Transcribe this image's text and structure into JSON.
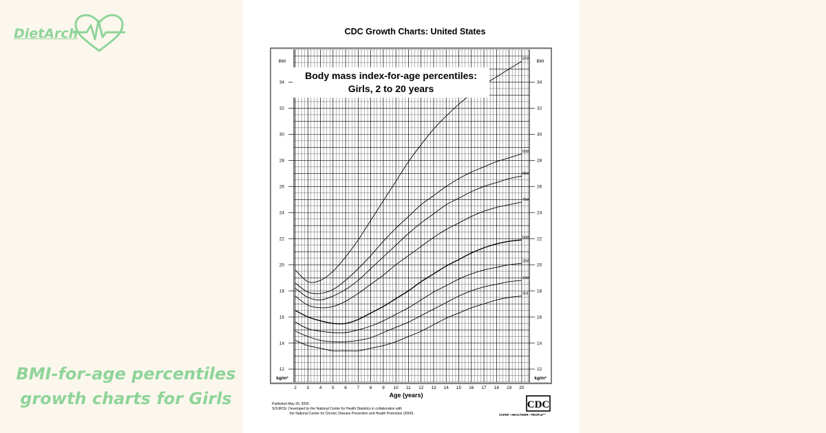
{
  "brand": {
    "name": "DietArch",
    "color": "#8fd49a"
  },
  "caption": {
    "line1": "BMI-for-age percentiles",
    "line2": "growth charts for Girls"
  },
  "sheet": {
    "header": "CDC Growth Charts: United States",
    "title_line1": "Body mass index-for-age percentiles:",
    "title_line2": "Girls, 2 to 20 years",
    "published": "Published May 30, 2000.",
    "source_line1": "SOURCE: Developed by the National Center for Health Statistics in collaboration with",
    "source_line2": "the National Center for Chronic Disease Prevention and Health Promotion (2000).",
    "logo_text": "CDC",
    "logo_tagline": "SAFER • HEALTHIER • PEOPLE™"
  },
  "chart_data": {
    "type": "line",
    "title": "Body mass index-for-age percentiles: Girls, 2 to 20 years",
    "xlabel": "Age (years)",
    "ylabel": "BMI",
    "yunit": "kg/m²",
    "xlim": [
      2,
      20.5
    ],
    "ylim": [
      11,
      36.5
    ],
    "x_ticks": [
      2,
      3,
      4,
      5,
      6,
      7,
      8,
      9,
      10,
      11,
      12,
      13,
      14,
      15,
      16,
      17,
      18,
      19,
      20
    ],
    "y_ticks": [
      12,
      14,
      16,
      18,
      20,
      22,
      24,
      26,
      28,
      30,
      32,
      34
    ],
    "grid": true,
    "x": [
      2,
      3,
      4,
      5,
      6,
      7,
      8,
      9,
      10,
      11,
      12,
      13,
      14,
      15,
      16,
      17,
      18,
      19,
      20
    ],
    "series": [
      {
        "name": "97th",
        "values": [
          19.6,
          18.7,
          18.8,
          19.5,
          20.6,
          21.9,
          23.4,
          24.9,
          26.4,
          27.9,
          29.2,
          30.4,
          31.4,
          32.3,
          33.1,
          33.8,
          34.4,
          35.0,
          35.6
        ]
      },
      {
        "name": "90th",
        "values": [
          18.6,
          17.9,
          17.8,
          18.1,
          18.8,
          19.7,
          20.7,
          21.8,
          22.8,
          23.7,
          24.6,
          25.3,
          26.0,
          26.6,
          27.1,
          27.5,
          27.9,
          28.2,
          28.5
        ]
      },
      {
        "name": "85th",
        "values": [
          18.2,
          17.5,
          17.3,
          17.6,
          18.1,
          18.8,
          19.7,
          20.6,
          21.5,
          22.4,
          23.2,
          23.9,
          24.6,
          25.1,
          25.6,
          26.0,
          26.3,
          26.6,
          26.8
        ]
      },
      {
        "name": "75th",
        "values": [
          17.6,
          16.9,
          16.7,
          16.8,
          17.2,
          17.8,
          18.5,
          19.2,
          20.0,
          20.7,
          21.4,
          22.1,
          22.7,
          23.2,
          23.7,
          24.1,
          24.4,
          24.6,
          24.8
        ]
      },
      {
        "name": "50th",
        "values": [
          16.5,
          16.0,
          15.7,
          15.5,
          15.5,
          15.8,
          16.3,
          16.8,
          17.4,
          18.0,
          18.7,
          19.3,
          19.9,
          20.4,
          20.9,
          21.3,
          21.6,
          21.8,
          21.9
        ]
      },
      {
        "name": "25th",
        "values": [
          15.6,
          15.1,
          14.9,
          14.8,
          14.8,
          15.0,
          15.3,
          15.7,
          16.2,
          16.7,
          17.3,
          17.9,
          18.4,
          18.9,
          19.3,
          19.6,
          19.8,
          20.0,
          20.1
        ]
      },
      {
        "name": "10th",
        "values": [
          14.9,
          14.5,
          14.2,
          14.1,
          14.1,
          14.2,
          14.4,
          14.8,
          15.2,
          15.6,
          16.1,
          16.6,
          17.1,
          17.6,
          18.0,
          18.3,
          18.5,
          18.7,
          18.8
        ]
      },
      {
        "name": "3rd",
        "values": [
          14.2,
          13.8,
          13.6,
          13.4,
          13.4,
          13.4,
          13.6,
          13.8,
          14.1,
          14.5,
          14.9,
          15.4,
          15.9,
          16.3,
          16.7,
          17.0,
          17.3,
          17.5,
          17.6
        ]
      }
    ]
  }
}
